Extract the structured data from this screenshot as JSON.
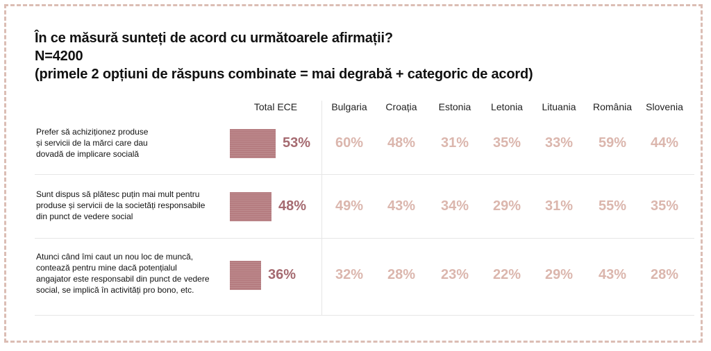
{
  "title": {
    "line1": "În ce măsură sunteți de acord cu următoarele afirmații?",
    "line2": "N=4200",
    "line3": "(primele 2 opțiuni de răspuns combinate = mai degrabă + categoric de acord)"
  },
  "colors": {
    "bar": "#b57c80",
    "bar_value": "#a56a70",
    "country_value": "#dbb6ad",
    "frame": "#dbbdb4"
  },
  "chart_data": {
    "type": "table",
    "title": "În ce măsură sunteți de acord cu următoarele afirmații?",
    "columns": [
      "Total ECE",
      "Bulgaria",
      "Croația",
      "Estonia",
      "Letonia",
      "Lituania",
      "România",
      "Slovenia"
    ],
    "rows": [
      {
        "label": "Prefer să achiziționez produse și servicii de la mărci care dau dovadă de implicare socială",
        "label_lines": [
          "Prefer să achiziționez produse",
          "și servicii de la mărci care dau",
          "dovadă de implicare socială"
        ],
        "total": 53,
        "total_label": "53%",
        "values": [
          60,
          48,
          31,
          35,
          33,
          59,
          44
        ],
        "value_labels": [
          "60%",
          "48%",
          "31%",
          "35%",
          "33%",
          "59%",
          "44%"
        ]
      },
      {
        "label": "Sunt dispus să plătesc puțin mai mult pentru produse și servicii de la societăți responsabile din punct de vedere social",
        "label_lines": [
          "Sunt dispus să plătesc puțin mai mult pentru",
          "produse și servicii de la societăți responsabile",
          "din punct de vedere social"
        ],
        "total": 48,
        "total_label": "48%",
        "values": [
          49,
          43,
          34,
          29,
          31,
          55,
          35
        ],
        "value_labels": [
          "49%",
          "43%",
          "34%",
          "29%",
          "31%",
          "55%",
          "35%"
        ]
      },
      {
        "label": "Atunci când îmi caut un nou loc de muncă, contează pentru mine dacă potențialul angajator este responsabil din punct de vedere social, se implică în activități pro bono, etc.",
        "label_lines": [
          "Atunci când îmi caut un nou loc de muncă,",
          "contează pentru mine dacă potențialul",
          "angajator este responsabil din punct de vedere",
          "social, se implică în activități pro bono, etc."
        ],
        "total": 36,
        "total_label": "36%",
        "values": [
          32,
          28,
          23,
          22,
          29,
          43,
          28
        ],
        "value_labels": [
          "32%",
          "28%",
          "23%",
          "22%",
          "29%",
          "43%",
          "28%"
        ]
      }
    ]
  }
}
